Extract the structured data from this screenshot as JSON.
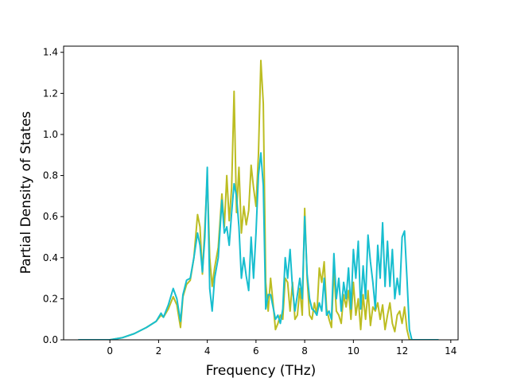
{
  "chart_data": {
    "type": "line",
    "xlabel": "Frequency (THz)",
    "ylabel": "Partial Density of States",
    "xlim": [
      -1.9,
      14.3
    ],
    "ylim": [
      0,
      1.43
    ],
    "grid": false,
    "xticks": [
      0,
      2,
      4,
      6,
      8,
      10,
      12,
      14
    ],
    "yticks": [
      0.0,
      0.2,
      0.4,
      0.6,
      0.8,
      1.0,
      1.2,
      1.4
    ],
    "series": [
      {
        "color": "#bcbd22",
        "x": [
          -1.3,
          0.0,
          0.5,
          1.0,
          1.5,
          1.9,
          2.1,
          2.2,
          2.4,
          2.6,
          2.75,
          2.9,
          3.0,
          3.15,
          3.3,
          3.45,
          3.6,
          3.7,
          3.8,
          3.9,
          4.0,
          4.1,
          4.2,
          4.3,
          4.45,
          4.6,
          4.7,
          4.8,
          4.9,
          5.0,
          5.1,
          5.2,
          5.3,
          5.4,
          5.5,
          5.6,
          5.7,
          5.8,
          5.9,
          6.0,
          6.1,
          6.2,
          6.3,
          6.4,
          6.5,
          6.6,
          6.7,
          6.8,
          6.9,
          7.0,
          7.1,
          7.2,
          7.3,
          7.4,
          7.5,
          7.6,
          7.7,
          7.8,
          7.9,
          8.0,
          8.1,
          8.2,
          8.3,
          8.4,
          8.5,
          8.6,
          8.7,
          8.8,
          8.9,
          9.0,
          9.1,
          9.2,
          9.3,
          9.4,
          9.5,
          9.6,
          9.7,
          9.8,
          9.9,
          10.0,
          10.1,
          10.2,
          10.3,
          10.4,
          10.5,
          10.6,
          10.7,
          10.8,
          10.9,
          11.0,
          11.1,
          11.2,
          11.3,
          11.4,
          11.5,
          11.6,
          11.7,
          11.8,
          11.9,
          12.0,
          12.1,
          12.2,
          12.3,
          12.4,
          13.5
        ],
        "y": [
          0.0,
          0.0,
          0.01,
          0.03,
          0.06,
          0.09,
          0.12,
          0.11,
          0.15,
          0.21,
          0.17,
          0.06,
          0.21,
          0.27,
          0.29,
          0.4,
          0.61,
          0.55,
          0.32,
          0.55,
          0.8,
          0.4,
          0.26,
          0.35,
          0.45,
          0.71,
          0.55,
          0.8,
          0.58,
          0.74,
          1.21,
          0.62,
          0.84,
          0.52,
          0.65,
          0.56,
          0.63,
          0.85,
          0.74,
          0.65,
          0.9,
          1.36,
          1.15,
          0.28,
          0.14,
          0.3,
          0.18,
          0.05,
          0.08,
          0.12,
          0.1,
          0.3,
          0.28,
          0.14,
          0.28,
          0.1,
          0.12,
          0.25,
          0.12,
          0.64,
          0.3,
          0.12,
          0.1,
          0.18,
          0.12,
          0.35,
          0.28,
          0.38,
          0.15,
          0.1,
          0.06,
          0.35,
          0.14,
          0.12,
          0.08,
          0.22,
          0.16,
          0.24,
          0.1,
          0.28,
          0.12,
          0.2,
          0.05,
          0.22,
          0.1,
          0.24,
          0.07,
          0.16,
          0.14,
          0.18,
          0.1,
          0.17,
          0.05,
          0.12,
          0.18,
          0.08,
          0.04,
          0.12,
          0.14,
          0.08,
          0.16,
          0.05,
          0.0,
          0.0,
          0.0
        ]
      },
      {
        "color": "#17becf",
        "x": [
          -1.3,
          0.0,
          0.5,
          1.0,
          1.5,
          1.9,
          2.1,
          2.2,
          2.4,
          2.6,
          2.75,
          2.9,
          3.0,
          3.15,
          3.3,
          3.45,
          3.6,
          3.7,
          3.8,
          3.9,
          4.0,
          4.1,
          4.2,
          4.3,
          4.45,
          4.6,
          4.7,
          4.8,
          4.9,
          5.0,
          5.1,
          5.2,
          5.3,
          5.4,
          5.5,
          5.6,
          5.7,
          5.8,
          5.9,
          6.0,
          6.1,
          6.2,
          6.3,
          6.4,
          6.5,
          6.6,
          6.7,
          6.8,
          6.9,
          7.0,
          7.1,
          7.2,
          7.3,
          7.4,
          7.5,
          7.6,
          7.7,
          7.8,
          7.9,
          8.0,
          8.1,
          8.2,
          8.3,
          8.4,
          8.5,
          8.6,
          8.7,
          8.8,
          8.9,
          9.0,
          9.1,
          9.2,
          9.3,
          9.4,
          9.5,
          9.6,
          9.7,
          9.8,
          9.9,
          10.0,
          10.1,
          10.2,
          10.3,
          10.4,
          10.5,
          10.6,
          10.7,
          10.8,
          10.9,
          11.0,
          11.1,
          11.2,
          11.3,
          11.4,
          11.5,
          11.6,
          11.7,
          11.8,
          11.9,
          12.0,
          12.1,
          12.2,
          12.3,
          12.4,
          13.5
        ],
        "y": [
          0.0,
          0.0,
          0.01,
          0.03,
          0.06,
          0.09,
          0.13,
          0.11,
          0.17,
          0.25,
          0.2,
          0.09,
          0.22,
          0.29,
          0.3,
          0.4,
          0.52,
          0.46,
          0.33,
          0.5,
          0.84,
          0.25,
          0.14,
          0.3,
          0.4,
          0.68,
          0.52,
          0.55,
          0.46,
          0.62,
          0.76,
          0.7,
          0.55,
          0.3,
          0.4,
          0.31,
          0.24,
          0.5,
          0.3,
          0.52,
          0.8,
          0.91,
          0.75,
          0.15,
          0.22,
          0.22,
          0.16,
          0.1,
          0.12,
          0.08,
          0.15,
          0.4,
          0.3,
          0.44,
          0.25,
          0.14,
          0.22,
          0.3,
          0.2,
          0.6,
          0.32,
          0.2,
          0.15,
          0.14,
          0.12,
          0.18,
          0.14,
          0.3,
          0.12,
          0.14,
          0.1,
          0.42,
          0.2,
          0.3,
          0.14,
          0.28,
          0.2,
          0.35,
          0.15,
          0.44,
          0.3,
          0.48,
          0.15,
          0.36,
          0.2,
          0.51,
          0.38,
          0.28,
          0.15,
          0.46,
          0.3,
          0.57,
          0.26,
          0.48,
          0.26,
          0.44,
          0.2,
          0.3,
          0.22,
          0.5,
          0.53,
          0.3,
          0.05,
          0.0,
          0.0
        ]
      }
    ]
  }
}
